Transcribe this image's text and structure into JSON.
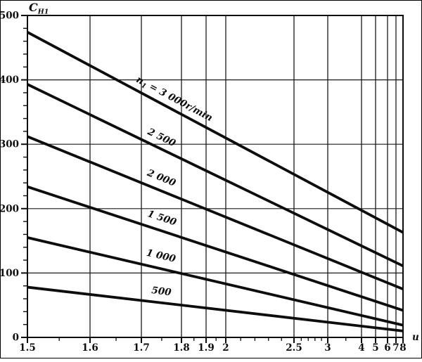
{
  "figure": {
    "background": "#ffffff",
    "border_color": "#000000"
  },
  "chart_data": {
    "type": "line",
    "title": "",
    "xlabel": "u",
    "ylabel": {
      "main": "C",
      "sub": "H1"
    },
    "x_scale": "log-like, piecewise (1.5-2 expanded, 2-8 compressed)",
    "xlim": [
      1.5,
      8
    ],
    "ylim": [
      0,
      500
    ],
    "grid": true,
    "line_color": "#0d0d0d",
    "grid_color": "#1a1a1a",
    "x_ticks_major": [
      1.5,
      1.6,
      1.7,
      1.8,
      1.9,
      2,
      2.5,
      3,
      4,
      5,
      6,
      7,
      8
    ],
    "x_tick_labels": [
      "1.5",
      "1.6",
      "1.7",
      "1.8",
      "1.9",
      "2",
      "2.5",
      "3",
      "4",
      "5",
      "6",
      "7",
      "8"
    ],
    "x_ticks_minor": [
      1.55,
      1.65,
      1.75,
      1.85,
      1.95,
      2.1,
      2.2,
      2.3,
      2.4,
      2.6,
      2.7,
      2.8,
      2.9,
      3.5
    ],
    "y_ticks_major": [
      0,
      100,
      200,
      300,
      400,
      500
    ],
    "y_tick_labels": [
      "0",
      "100",
      "200",
      "300",
      "400",
      "500"
    ],
    "y_minor_step": 20,
    "series": [
      {
        "n1_rpm": 3000,
        "label_pre": "n",
        "label_sub": "1",
        "label_post": " = 3 000r/min",
        "points": [
          {
            "u": 1.5,
            "C": 474
          },
          {
            "u": 8,
            "C": 163
          }
        ]
      },
      {
        "n1_rpm": 2500,
        "label": "2 500",
        "points": [
          {
            "u": 1.5,
            "C": 393
          },
          {
            "u": 8,
            "C": 111
          }
        ]
      },
      {
        "n1_rpm": 2000,
        "label": "2 000",
        "points": [
          {
            "u": 1.5,
            "C": 312
          },
          {
            "u": 8,
            "C": 75
          }
        ]
      },
      {
        "n1_rpm": 1500,
        "label": "1 500",
        "points": [
          {
            "u": 1.5,
            "C": 234
          },
          {
            "u": 8,
            "C": 42
          }
        ]
      },
      {
        "n1_rpm": 1000,
        "label": "1 000",
        "points": [
          {
            "u": 1.5,
            "C": 155
          },
          {
            "u": 8,
            "C": 19
          }
        ]
      },
      {
        "n1_rpm": 500,
        "label": "500",
        "points": [
          {
            "u": 1.5,
            "C": 78
          },
          {
            "u": 8,
            "C": 10
          }
        ]
      }
    ]
  }
}
